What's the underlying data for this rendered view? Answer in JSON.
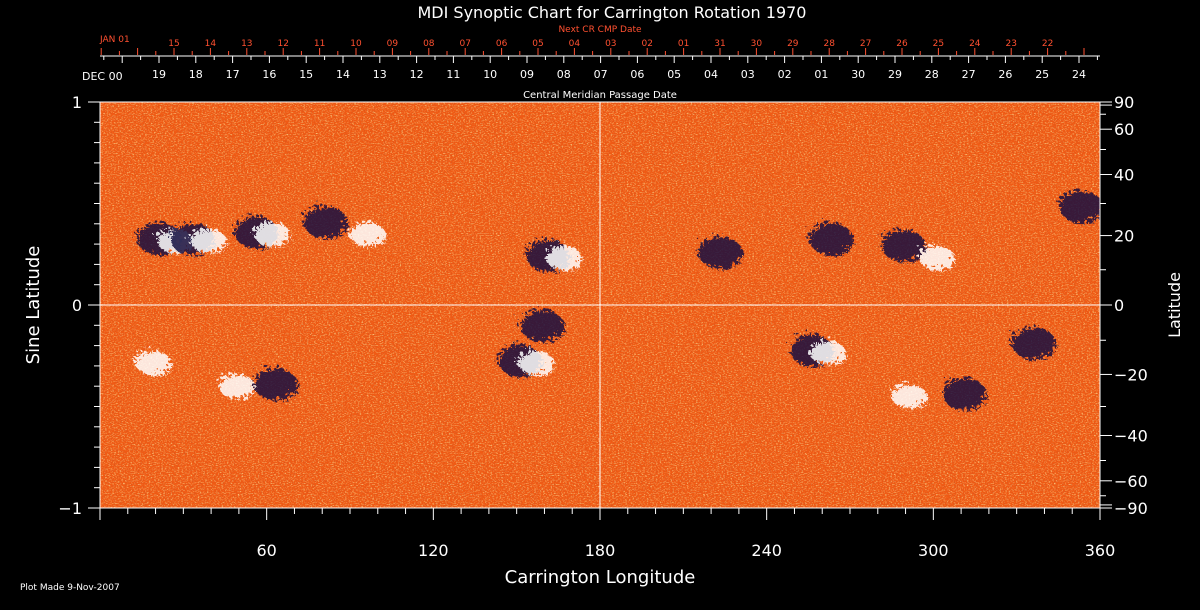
{
  "chart_data": {
    "type": "heatmap",
    "title": "MDI Synoptic Chart for Carrington Rotation 1970",
    "xlabel": "Carrington Longitude",
    "ylabel_left": "Sine Latitude",
    "ylabel_right": "Latitude",
    "xlim": [
      0,
      360
    ],
    "ylim": [
      -1,
      1
    ],
    "x_ticks": [
      60,
      120,
      180,
      240,
      300,
      360
    ],
    "y_ticks_left": [
      -1,
      0,
      1
    ],
    "y_ticks_right": [
      90,
      60,
      40,
      20,
      0,
      -20,
      -40,
      -60,
      -90
    ],
    "cmp_axis": {
      "label": "Central Meridian Passage Date",
      "start_label": "DEC 00",
      "dates": [
        "19",
        "18",
        "17",
        "16",
        "15",
        "14",
        "13",
        "12",
        "11",
        "10",
        "09",
        "08",
        "07",
        "06",
        "05",
        "04",
        "03",
        "02",
        "01",
        "30",
        "29",
        "28",
        "27",
        "26",
        "25",
        "24"
      ]
    },
    "next_cmp_axis": {
      "label": "Next CR CMP Date",
      "start_label": "JAN 01",
      "dates": [
        "15",
        "14",
        "13",
        "12",
        "11",
        "10",
        "09",
        "08",
        "07",
        "06",
        "05",
        "04",
        "03",
        "02",
        "01",
        "31",
        "30",
        "29",
        "28",
        "27",
        "26",
        "25",
        "24",
        "23",
        "22"
      ]
    },
    "color_scale": {
      "positive": "#ffffff",
      "neutral": "#ff5a10",
      "negative": "#151040",
      "background": "#000000",
      "axis": "#ffffff",
      "top_axis": "#ff5030"
    },
    "active_regions": [
      {
        "lon": 20,
        "lat": 20,
        "polarity": "mixed"
      },
      {
        "lon": 32,
        "lat": 20,
        "polarity": "mixed"
      },
      {
        "lon": 55,
        "lat": 22,
        "polarity": "mixed"
      },
      {
        "lon": 80,
        "lat": 25,
        "polarity": "negative"
      },
      {
        "lon": 95,
        "lat": 22,
        "polarity": "positive"
      },
      {
        "lon": 160,
        "lat": 15,
        "polarity": "mixed"
      },
      {
        "lon": 222,
        "lat": 16,
        "polarity": "negative"
      },
      {
        "lon": 262,
        "lat": 20,
        "polarity": "negative"
      },
      {
        "lon": 288,
        "lat": 18,
        "polarity": "negative"
      },
      {
        "lon": 300,
        "lat": 15,
        "polarity": "positive"
      },
      {
        "lon": 352,
        "lat": 30,
        "polarity": "negative"
      },
      {
        "lon": 18,
        "lat": -15,
        "polarity": "positive"
      },
      {
        "lon": 48,
        "lat": -22,
        "polarity": "positive"
      },
      {
        "lon": 62,
        "lat": -22,
        "polarity": "negative"
      },
      {
        "lon": 150,
        "lat": -15,
        "polarity": "mixed"
      },
      {
        "lon": 158,
        "lat": -5,
        "polarity": "negative"
      },
      {
        "lon": 255,
        "lat": -12,
        "polarity": "mixed"
      },
      {
        "lon": 290,
        "lat": -25,
        "polarity": "positive"
      },
      {
        "lon": 310,
        "lat": -25,
        "polarity": "negative"
      },
      {
        "lon": 335,
        "lat": -10,
        "polarity": "negative"
      }
    ]
  },
  "footer": {
    "plot_made": "Plot Made  9-Nov-2007"
  }
}
